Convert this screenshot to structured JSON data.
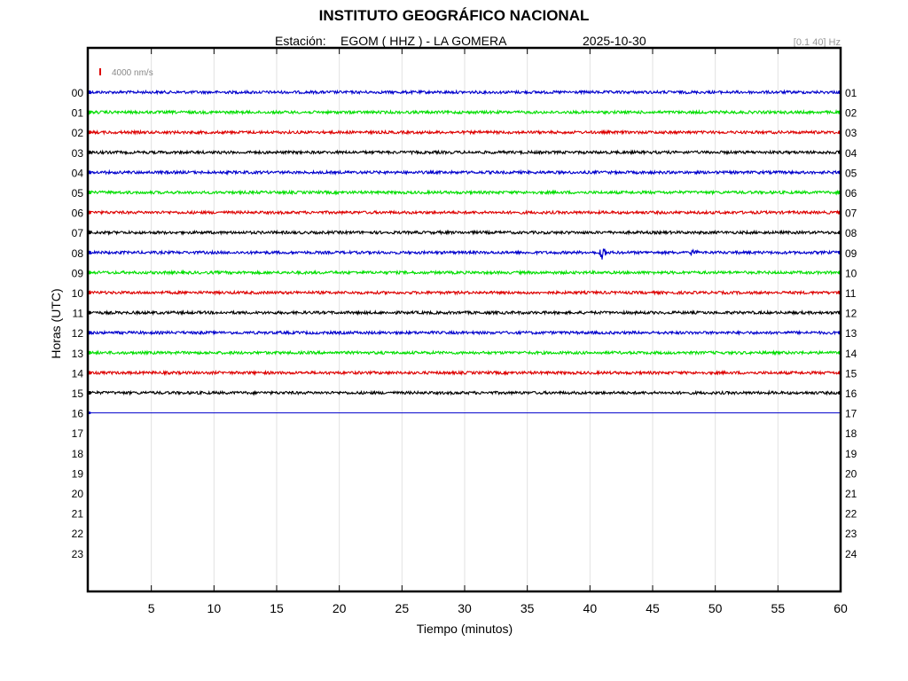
{
  "header": {
    "title": "INSTITUTO GEOGRÁFICO NACIONAL",
    "station_label": "Estación:",
    "station": "EGOM ( HHZ ) - LA GOMERA",
    "date": "2025-10-30",
    "filter": "[0.1 40] Hz"
  },
  "chart_data": {
    "type": "line",
    "title": "INSTITUTO GEOGRÁFICO NACIONAL",
    "xlabel": "Tiempo (minutos)",
    "ylabel": "Horas (UTC)",
    "xlim": [
      0,
      60
    ],
    "x_ticks": [
      5,
      10,
      15,
      20,
      25,
      30,
      35,
      40,
      45,
      50,
      55,
      60
    ],
    "y_ticks_left": [
      "00",
      "01",
      "02",
      "03",
      "04",
      "05",
      "06",
      "07",
      "08",
      "09",
      "10",
      "11",
      "12",
      "13",
      "14",
      "15",
      "16",
      "17",
      "18",
      "19",
      "20",
      "21",
      "22",
      "23"
    ],
    "y_ticks_right": [
      "01",
      "02",
      "03",
      "04",
      "05",
      "06",
      "07",
      "08",
      "09",
      "10",
      "11",
      "12",
      "13",
      "14",
      "15",
      "16",
      "17",
      "18",
      "19",
      "20",
      "21",
      "22",
      "23",
      "24"
    ],
    "scale_label": "4000 nm/s",
    "grid": "vertical",
    "series": [
      {
        "hour": "00",
        "color": "#0000cc",
        "x_end": 60
      },
      {
        "hour": "01",
        "color": "#00dd00",
        "x_end": 60
      },
      {
        "hour": "02",
        "color": "#dd0000",
        "x_end": 60
      },
      {
        "hour": "03",
        "color": "#000000",
        "x_end": 60
      },
      {
        "hour": "04",
        "color": "#0000cc",
        "x_end": 60
      },
      {
        "hour": "05",
        "color": "#00dd00",
        "x_end": 60
      },
      {
        "hour": "06",
        "color": "#dd0000",
        "x_end": 60
      },
      {
        "hour": "07",
        "color": "#000000",
        "x_end": 60
      },
      {
        "hour": "08",
        "color": "#0000cc",
        "x_end": 60,
        "events": [
          {
            "x": 41.0,
            "amp": 1.0
          },
          {
            "x": 48.2,
            "amp": 0.45
          }
        ]
      },
      {
        "hour": "09",
        "color": "#00dd00",
        "x_end": 60
      },
      {
        "hour": "10",
        "color": "#dd0000",
        "x_end": 60
      },
      {
        "hour": "11",
        "color": "#000000",
        "x_end": 60
      },
      {
        "hour": "12",
        "color": "#0000cc",
        "x_end": 60
      },
      {
        "hour": "13",
        "color": "#00dd00",
        "x_end": 60
      },
      {
        "hour": "14",
        "color": "#dd0000",
        "x_end": 60
      },
      {
        "hour": "15",
        "color": "#000000",
        "x_end": 60
      },
      {
        "hour": "16",
        "color": "#0000cc",
        "x_end": 60,
        "flat": true
      }
    ]
  }
}
